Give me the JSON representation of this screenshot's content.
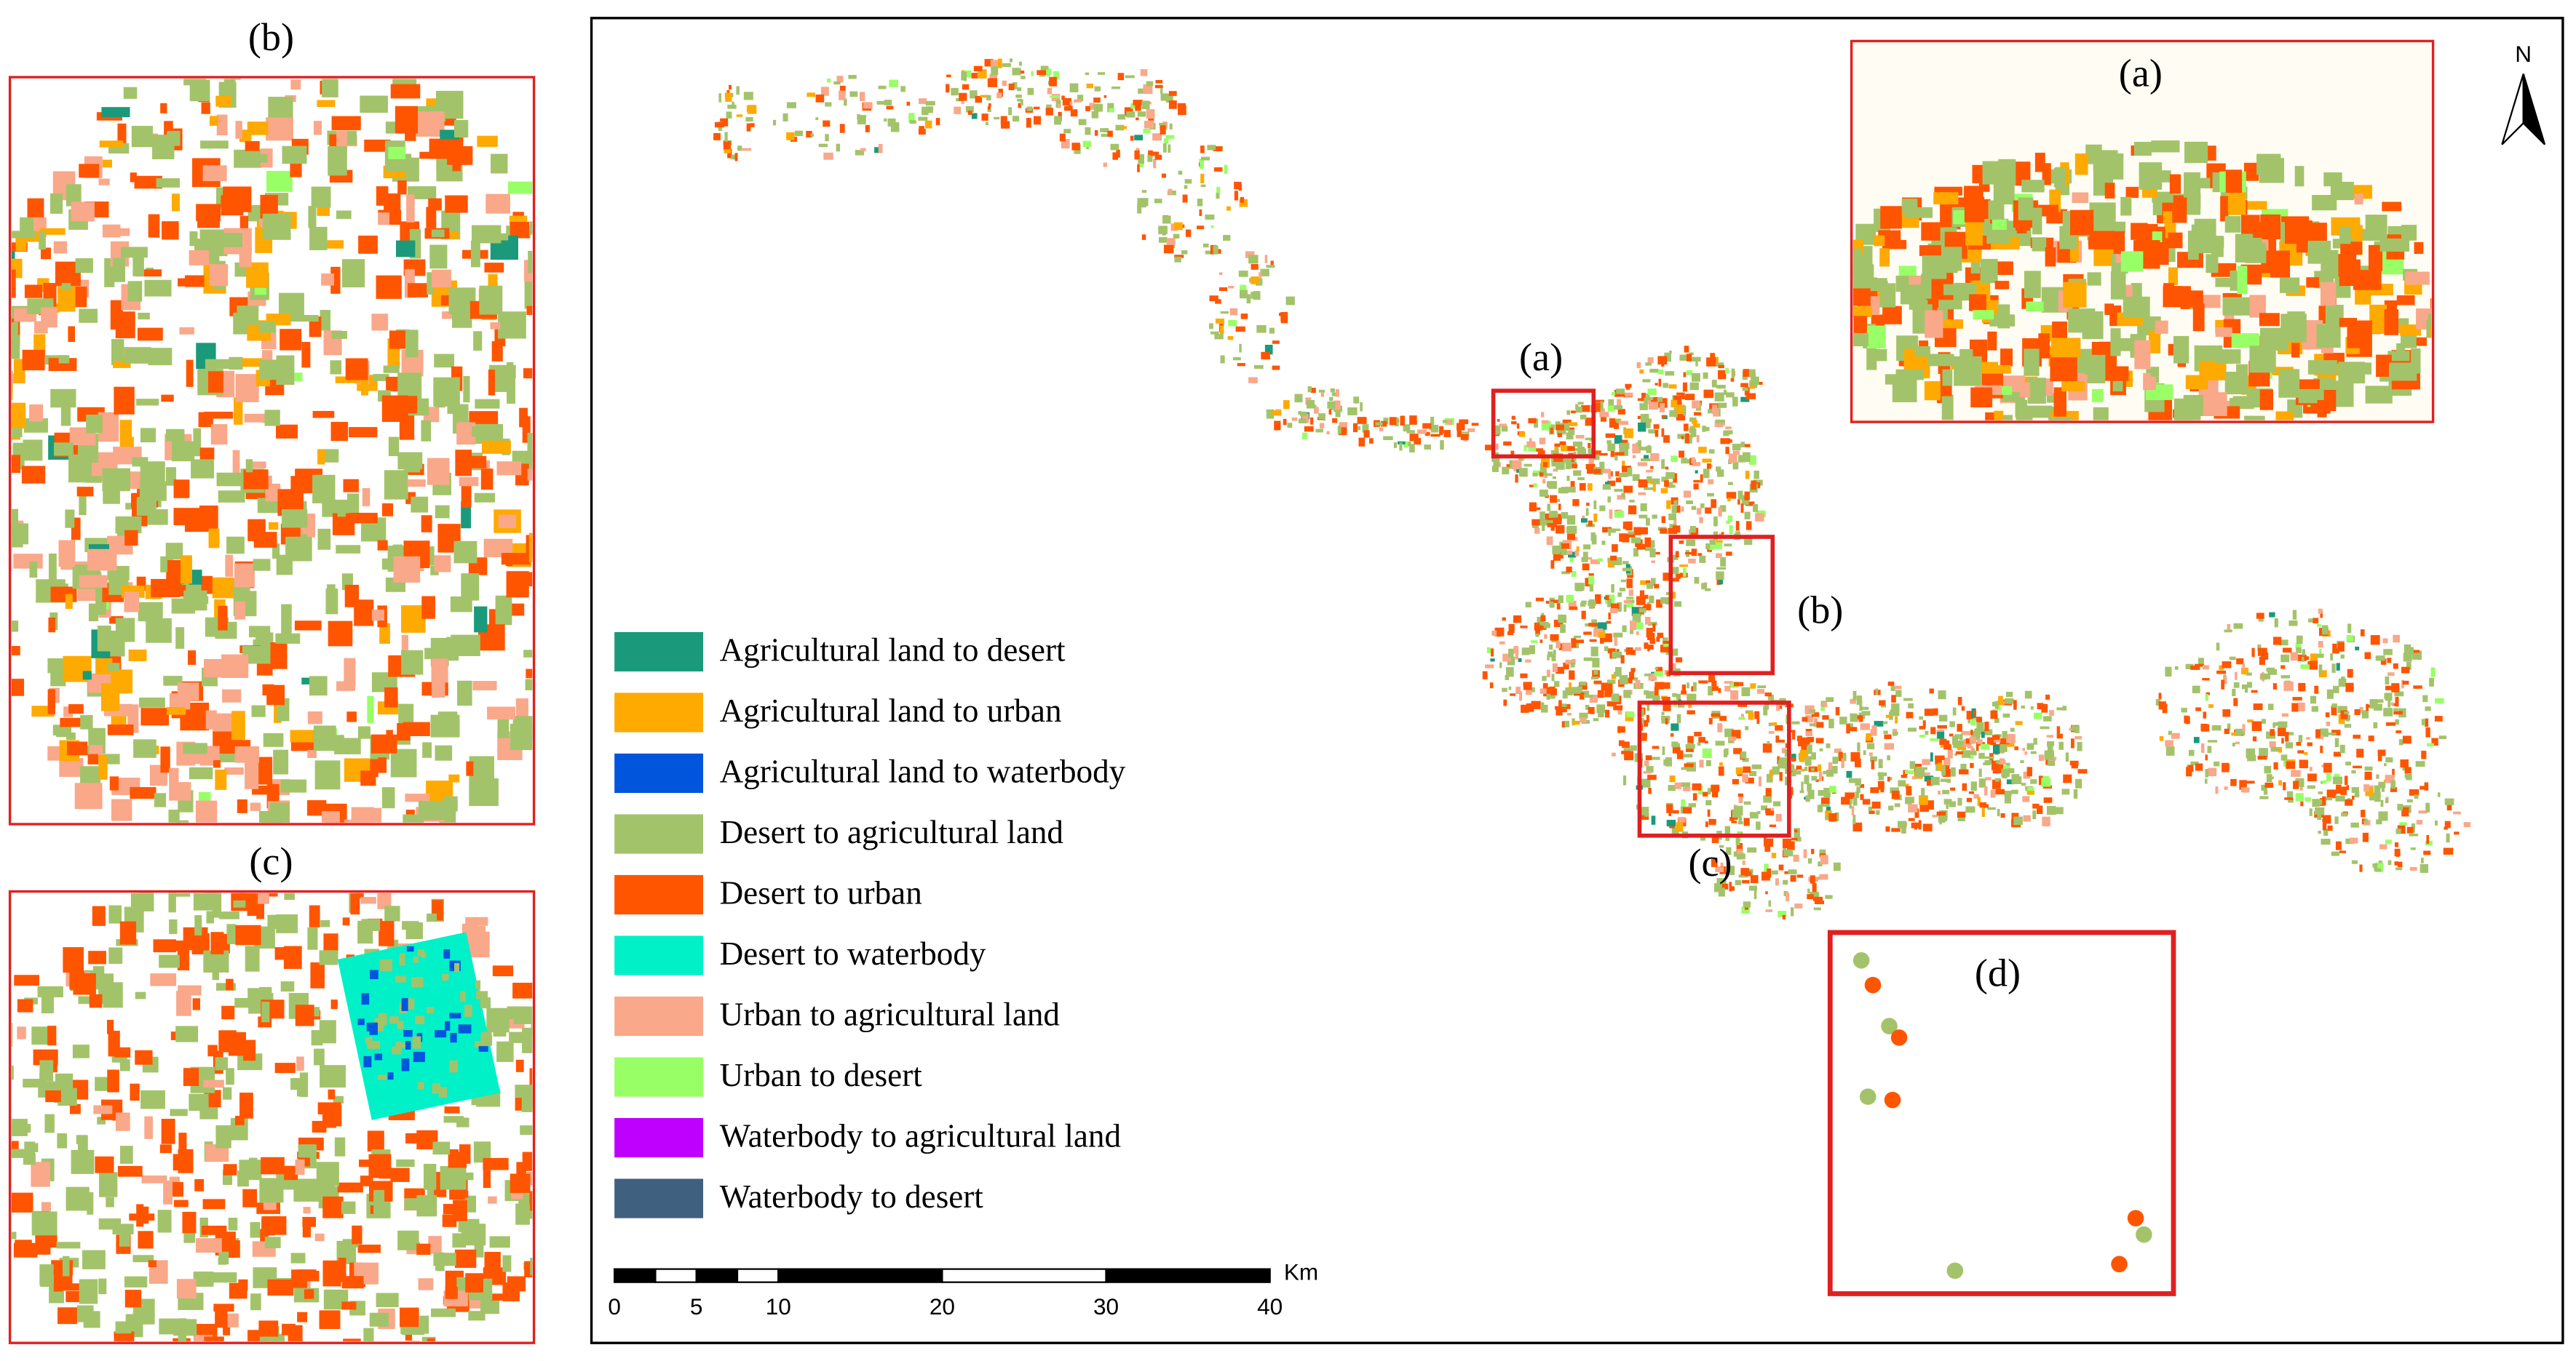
{
  "panels": [
    {
      "label": "(b)"
    },
    {
      "label": "(c)"
    }
  ],
  "main_map": {
    "north_label": "N",
    "callouts": [
      "(a)",
      "(b)",
      "(c)"
    ],
    "insets": [
      {
        "label": "(a)"
      },
      {
        "label": "(d)"
      }
    ]
  },
  "legend": [
    {
      "label": "Agricultural land to desert",
      "color": "#1a9a7a"
    },
    {
      "label": "Agricultural land to urban",
      "color": "#ffaa00"
    },
    {
      "label": "Agricultural land to waterbody",
      "color": "#0055dd"
    },
    {
      "label": "Desert to agricultural land",
      "color": "#a3c36a"
    },
    {
      "label": "Desert to urban",
      "color": "#ff5500"
    },
    {
      "label": "Desert to waterbody",
      "color": "#00f0c8"
    },
    {
      "label": "Urban to agricultural land",
      "color": "#f9a88a"
    },
    {
      "label": "Urban to desert",
      "color": "#99ff66"
    },
    {
      "label": "Waterbody to agricultural land",
      "color": "#c000ff"
    },
    {
      "label": "Waterbody to desert",
      "color": "#406080"
    }
  ],
  "scale_bar": {
    "unit": "Km",
    "ticks": [
      0,
      5,
      10,
      20,
      30,
      40
    ]
  }
}
